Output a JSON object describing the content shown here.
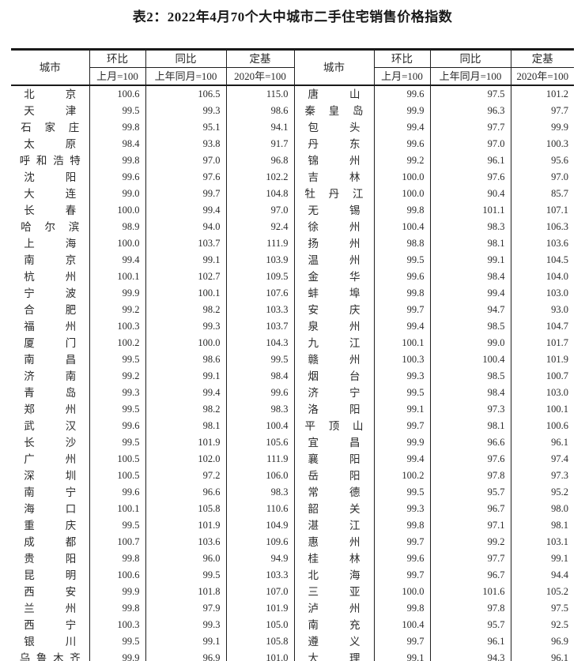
{
  "page": {
    "title": "表2：2022年4月70个大中城市二手住宅销售价格指数"
  },
  "table": {
    "headers": {
      "city": "城市",
      "mom": "环比",
      "mom_sub": "上月=100",
      "yoy": "同比",
      "yoy_sub": "上年同月=100",
      "base": "定基",
      "base_sub": "2020年=100"
    },
    "left_rows": [
      {
        "city": "北京",
        "mom": "100.6",
        "yoy": "106.5",
        "base": "115.0"
      },
      {
        "city": "天津",
        "mom": "99.5",
        "yoy": "99.3",
        "base": "98.6"
      },
      {
        "city": "石家庄",
        "mom": "99.8",
        "yoy": "95.1",
        "base": "94.1"
      },
      {
        "city": "太原",
        "mom": "98.4",
        "yoy": "93.8",
        "base": "91.7"
      },
      {
        "city": "呼和浩特",
        "mom": "99.8",
        "yoy": "97.0",
        "base": "96.8"
      },
      {
        "city": "沈阳",
        "mom": "99.6",
        "yoy": "97.6",
        "base": "102.2"
      },
      {
        "city": "大连",
        "mom": "99.0",
        "yoy": "99.7",
        "base": "104.8"
      },
      {
        "city": "长春",
        "mom": "100.0",
        "yoy": "99.4",
        "base": "97.0"
      },
      {
        "city": "哈尔滨",
        "mom": "98.9",
        "yoy": "94.0",
        "base": "92.4"
      },
      {
        "city": "上海",
        "mom": "100.0",
        "yoy": "103.7",
        "base": "111.9"
      },
      {
        "city": "南京",
        "mom": "99.4",
        "yoy": "99.1",
        "base": "103.9"
      },
      {
        "city": "杭州",
        "mom": "100.1",
        "yoy": "102.7",
        "base": "109.5"
      },
      {
        "city": "宁波",
        "mom": "99.9",
        "yoy": "100.1",
        "base": "107.6"
      },
      {
        "city": "合肥",
        "mom": "99.2",
        "yoy": "98.2",
        "base": "103.3"
      },
      {
        "city": "福州",
        "mom": "100.3",
        "yoy": "99.3",
        "base": "103.7"
      },
      {
        "city": "厦门",
        "mom": "100.2",
        "yoy": "100.0",
        "base": "104.3"
      },
      {
        "city": "南昌",
        "mom": "99.5",
        "yoy": "98.6",
        "base": "99.5"
      },
      {
        "city": "济南",
        "mom": "99.2",
        "yoy": "99.1",
        "base": "98.4"
      },
      {
        "city": "青岛",
        "mom": "99.3",
        "yoy": "99.4",
        "base": "99.6"
      },
      {
        "city": "郑州",
        "mom": "99.5",
        "yoy": "98.2",
        "base": "98.3"
      },
      {
        "city": "武汉",
        "mom": "99.6",
        "yoy": "98.1",
        "base": "100.4"
      },
      {
        "city": "长沙",
        "mom": "99.5",
        "yoy": "101.9",
        "base": "105.6"
      },
      {
        "city": "广州",
        "mom": "100.5",
        "yoy": "102.0",
        "base": "111.9"
      },
      {
        "city": "深圳",
        "mom": "100.5",
        "yoy": "97.2",
        "base": "106.0"
      },
      {
        "city": "南宁",
        "mom": "99.6",
        "yoy": "96.6",
        "base": "98.3"
      },
      {
        "city": "海口",
        "mom": "100.1",
        "yoy": "105.8",
        "base": "110.6"
      },
      {
        "city": "重庆",
        "mom": "99.5",
        "yoy": "101.9",
        "base": "104.9"
      },
      {
        "city": "成都",
        "mom": "100.7",
        "yoy": "103.6",
        "base": "109.6"
      },
      {
        "city": "贵阳",
        "mom": "99.8",
        "yoy": "96.0",
        "base": "94.9"
      },
      {
        "city": "昆明",
        "mom": "100.6",
        "yoy": "99.5",
        "base": "103.3"
      },
      {
        "city": "西安",
        "mom": "99.9",
        "yoy": "101.8",
        "base": "107.0"
      },
      {
        "city": "兰州",
        "mom": "99.8",
        "yoy": "97.9",
        "base": "101.9"
      },
      {
        "city": "西宁",
        "mom": "100.3",
        "yoy": "99.3",
        "base": "105.0"
      },
      {
        "city": "银川",
        "mom": "99.5",
        "yoy": "99.1",
        "base": "105.8"
      },
      {
        "city": "乌鲁木齐",
        "mom": "99.9",
        "yoy": "96.9",
        "base": "101.0"
      }
    ],
    "right_rows": [
      {
        "city": "唐山",
        "mom": "99.6",
        "yoy": "97.5",
        "base": "101.2"
      },
      {
        "city": "秦皇岛",
        "mom": "99.9",
        "yoy": "96.3",
        "base": "97.7"
      },
      {
        "city": "包头",
        "mom": "99.4",
        "yoy": "97.7",
        "base": "99.9"
      },
      {
        "city": "丹东",
        "mom": "99.6",
        "yoy": "97.0",
        "base": "100.3"
      },
      {
        "city": "锦州",
        "mom": "99.2",
        "yoy": "96.1",
        "base": "95.6"
      },
      {
        "city": "吉林",
        "mom": "100.0",
        "yoy": "97.6",
        "base": "97.0"
      },
      {
        "city": "牡丹江",
        "mom": "100.0",
        "yoy": "90.4",
        "base": "85.7"
      },
      {
        "city": "无锡",
        "mom": "99.8",
        "yoy": "101.1",
        "base": "107.1"
      },
      {
        "city": "徐州",
        "mom": "100.4",
        "yoy": "98.3",
        "base": "106.3"
      },
      {
        "city": "扬州",
        "mom": "98.8",
        "yoy": "98.1",
        "base": "103.6"
      },
      {
        "city": "温州",
        "mom": "99.5",
        "yoy": "99.1",
        "base": "104.5"
      },
      {
        "city": "金华",
        "mom": "99.6",
        "yoy": "98.4",
        "base": "104.0"
      },
      {
        "city": "蚌埠",
        "mom": "99.8",
        "yoy": "99.4",
        "base": "103.0"
      },
      {
        "city": "安庆",
        "mom": "99.7",
        "yoy": "94.7",
        "base": "93.0"
      },
      {
        "city": "泉州",
        "mom": "99.4",
        "yoy": "98.5",
        "base": "104.7"
      },
      {
        "city": "九江",
        "mom": "100.1",
        "yoy": "99.0",
        "base": "101.7"
      },
      {
        "city": "赣州",
        "mom": "100.3",
        "yoy": "100.4",
        "base": "101.9"
      },
      {
        "city": "烟台",
        "mom": "99.3",
        "yoy": "98.5",
        "base": "100.7"
      },
      {
        "city": "济宁",
        "mom": "99.5",
        "yoy": "98.4",
        "base": "103.0"
      },
      {
        "city": "洛阳",
        "mom": "99.1",
        "yoy": "97.3",
        "base": "100.1"
      },
      {
        "city": "平顶山",
        "mom": "99.7",
        "yoy": "98.1",
        "base": "100.6"
      },
      {
        "city": "宜昌",
        "mom": "99.9",
        "yoy": "96.6",
        "base": "96.1"
      },
      {
        "city": "襄阳",
        "mom": "99.4",
        "yoy": "97.6",
        "base": "97.4"
      },
      {
        "city": "岳阳",
        "mom": "100.2",
        "yoy": "97.8",
        "base": "97.3"
      },
      {
        "city": "常德",
        "mom": "99.5",
        "yoy": "95.7",
        "base": "95.2"
      },
      {
        "city": "韶关",
        "mom": "99.3",
        "yoy": "96.7",
        "base": "98.0"
      },
      {
        "city": "湛江",
        "mom": "99.8",
        "yoy": "97.1",
        "base": "98.1"
      },
      {
        "city": "惠州",
        "mom": "99.7",
        "yoy": "99.2",
        "base": "103.1"
      },
      {
        "city": "桂林",
        "mom": "99.6",
        "yoy": "97.7",
        "base": "99.1"
      },
      {
        "city": "北海",
        "mom": "99.7",
        "yoy": "96.7",
        "base": "94.4"
      },
      {
        "city": "三亚",
        "mom": "100.0",
        "yoy": "101.6",
        "base": "105.2"
      },
      {
        "city": "泸州",
        "mom": "99.8",
        "yoy": "97.8",
        "base": "97.5"
      },
      {
        "city": "南充",
        "mom": "100.4",
        "yoy": "95.7",
        "base": "92.5"
      },
      {
        "city": "遵义",
        "mom": "99.7",
        "yoy": "96.1",
        "base": "96.9"
      },
      {
        "city": "大理",
        "mom": "99.1",
        "yoy": "94.3",
        "base": "96.1"
      }
    ]
  },
  "colors": {
    "text": "#222222",
    "border": "#1a1a1a",
    "background": "#ffffff"
  }
}
